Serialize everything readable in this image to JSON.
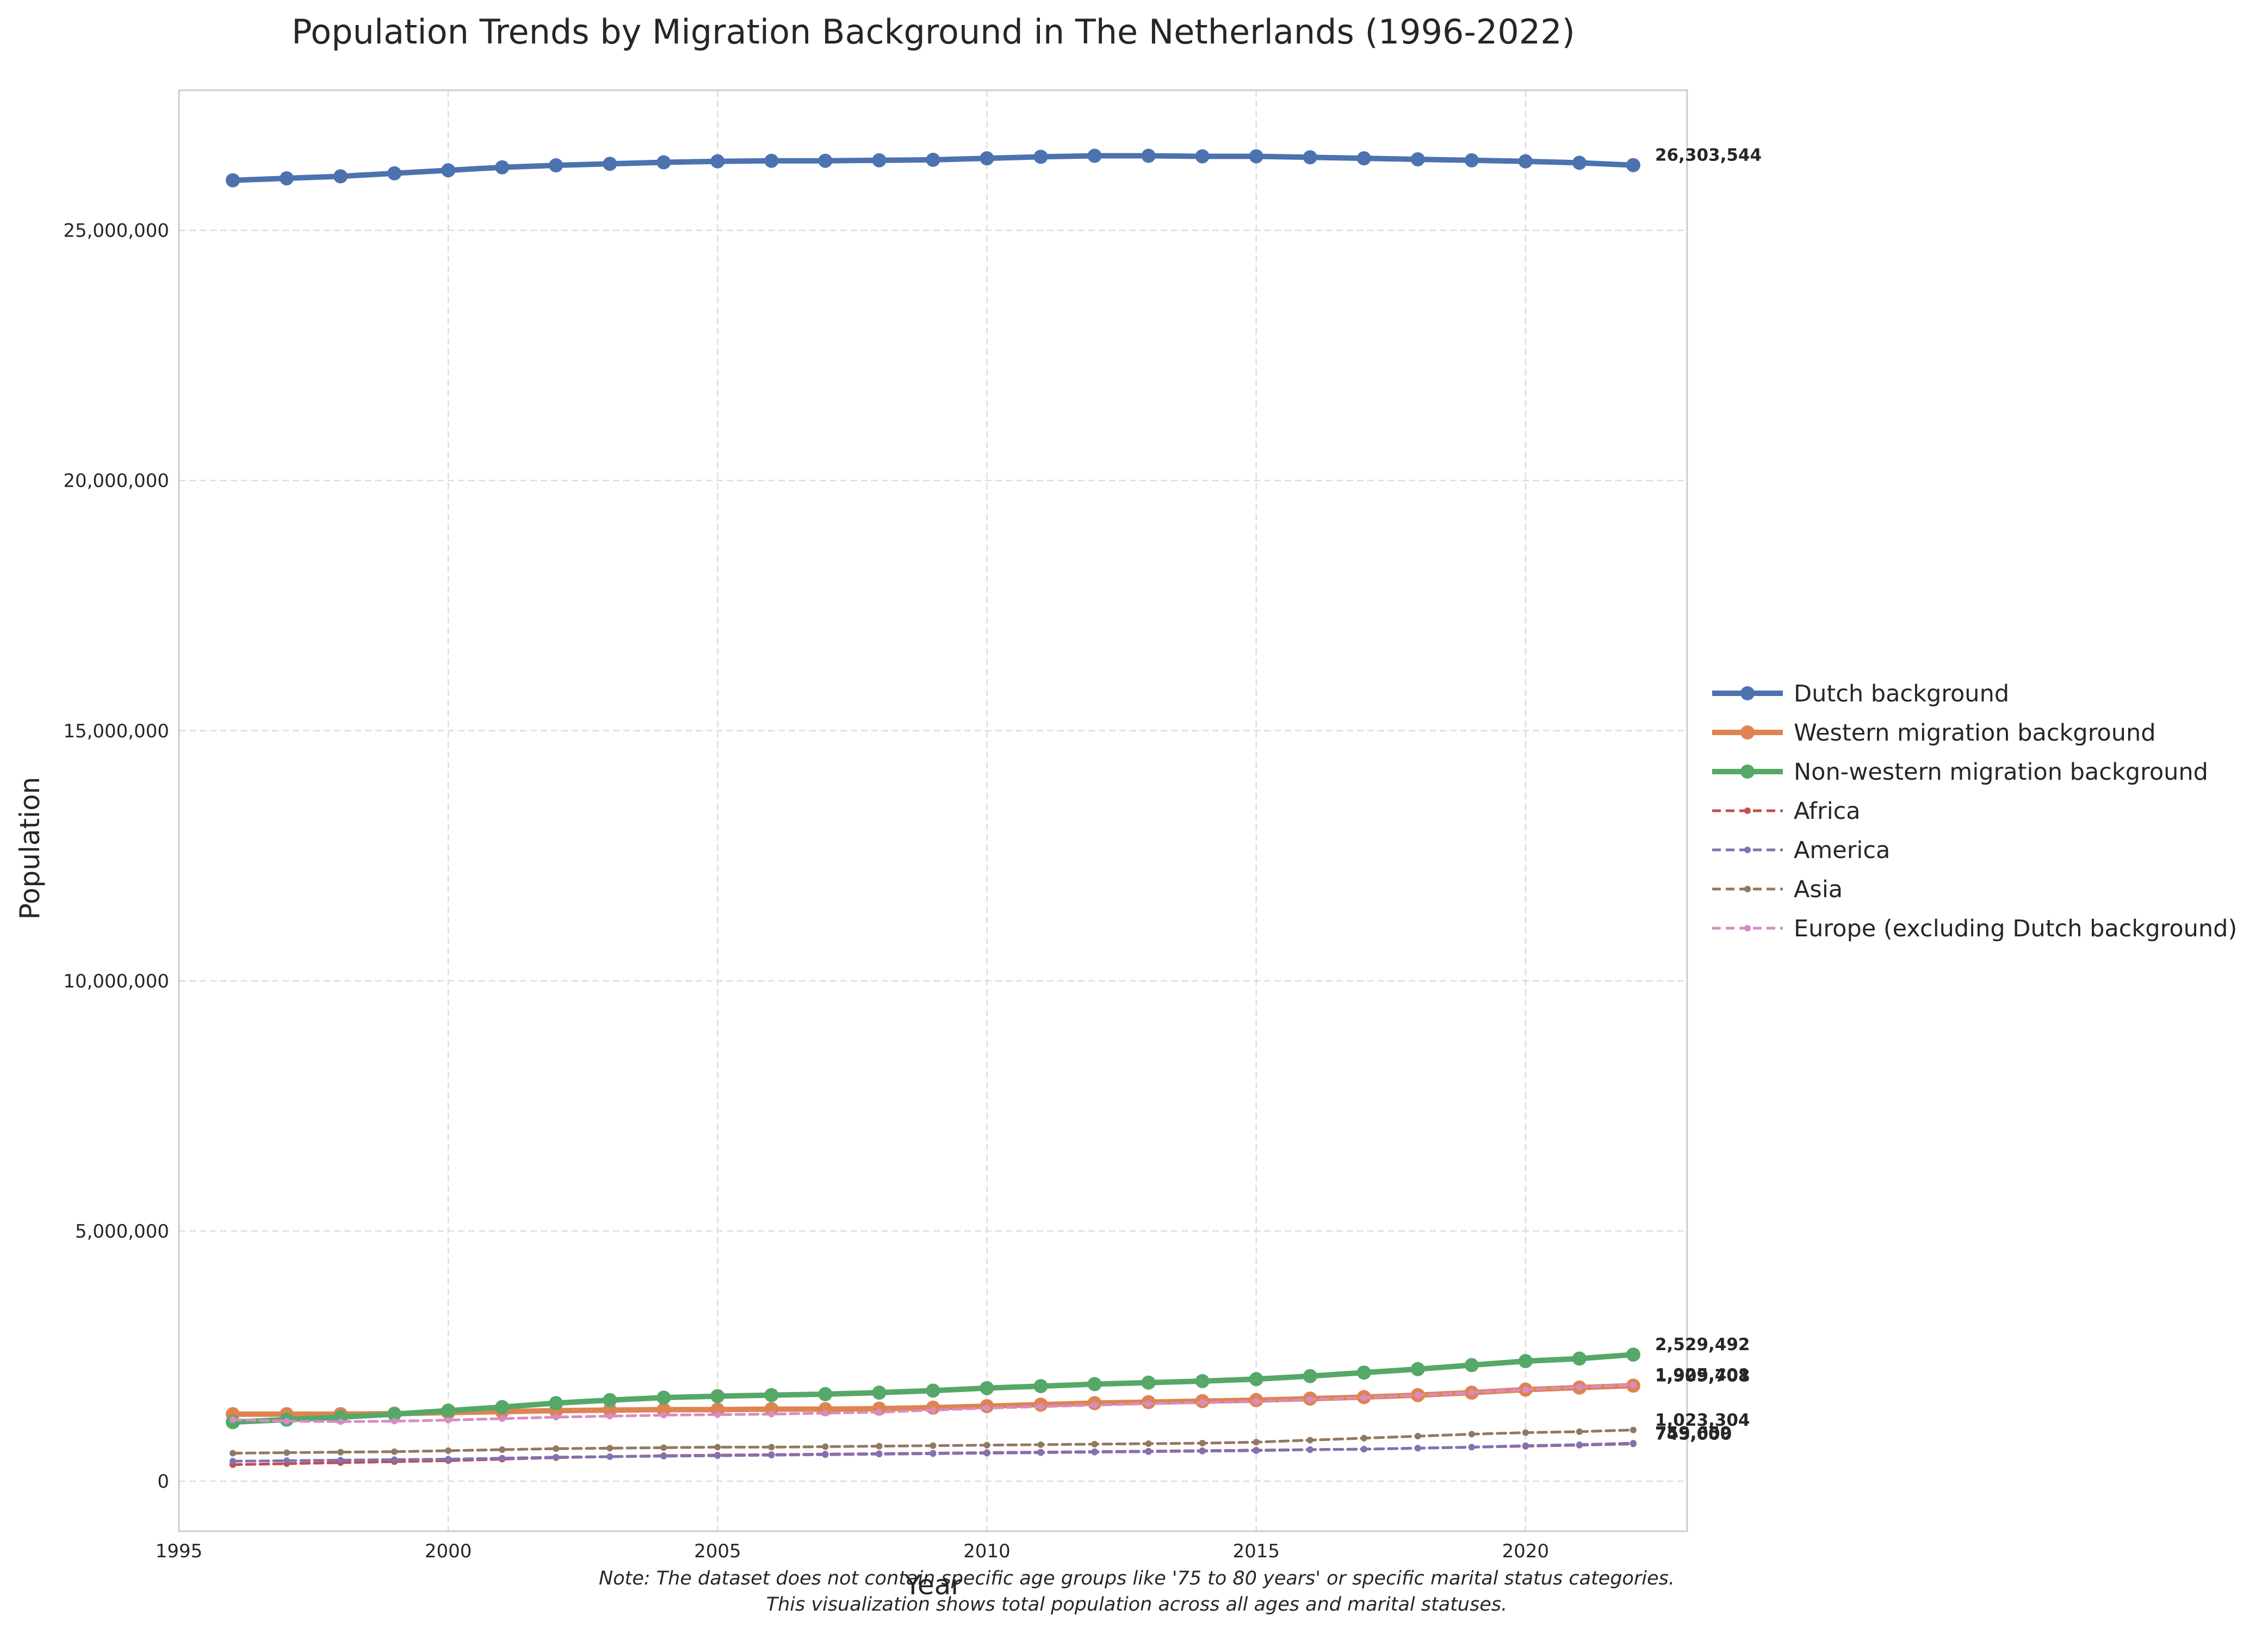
{
  "chart_data": {
    "type": "line",
    "title": "Population Trends by Migration Background in The Netherlands (1996-2022)",
    "xlabel": "Year",
    "ylabel": "Population",
    "xlim": [
      1995,
      2023
    ],
    "ylim": [
      -1000000,
      27800000
    ],
    "x_ticks": [
      1995,
      2000,
      2005,
      2010,
      2015,
      2020
    ],
    "y_ticks": [
      0,
      5000000,
      10000000,
      15000000,
      20000000,
      25000000
    ],
    "grid": true,
    "legend_position": "right",
    "x": [
      1996,
      1997,
      1998,
      1999,
      2000,
      2001,
      2002,
      2003,
      2004,
      2005,
      2006,
      2007,
      2008,
      2009,
      2010,
      2011,
      2012,
      2013,
      2014,
      2015,
      2016,
      2017,
      2018,
      2019,
      2020,
      2021,
      2022
    ],
    "series": [
      {
        "name": "Dutch background",
        "style": "solid-thick",
        "color": "#4c72b0",
        "values": [
          26000000,
          26040000,
          26080000,
          26140000,
          26200000,
          26260000,
          26300000,
          26330000,
          26360000,
          26380000,
          26390000,
          26390000,
          26400000,
          26410000,
          26440000,
          26470000,
          26490000,
          26490000,
          26480000,
          26480000,
          26460000,
          26440000,
          26420000,
          26400000,
          26380000,
          26350000,
          26303544
        ]
      },
      {
        "name": "Western migration background",
        "style": "solid-thick",
        "color": "#dd8452",
        "values": [
          1340000,
          1340000,
          1340000,
          1350000,
          1370000,
          1390000,
          1410000,
          1420000,
          1430000,
          1430000,
          1440000,
          1440000,
          1450000,
          1470000,
          1500000,
          1530000,
          1560000,
          1580000,
          1600000,
          1620000,
          1650000,
          1680000,
          1720000,
          1770000,
          1830000,
          1870000,
          1909708
        ]
      },
      {
        "name": "Non-western migration background",
        "style": "solid-thick",
        "color": "#55a868",
        "values": [
          1180000,
          1230000,
          1280000,
          1340000,
          1410000,
          1480000,
          1560000,
          1620000,
          1670000,
          1700000,
          1720000,
          1740000,
          1770000,
          1810000,
          1860000,
          1900000,
          1940000,
          1970000,
          2000000,
          2040000,
          2100000,
          2170000,
          2240000,
          2320000,
          2400000,
          2450000,
          2529492
        ]
      },
      {
        "name": "Africa",
        "style": "dashed",
        "color": "#c44e52",
        "values": [
          330000,
          350000,
          370000,
          390000,
          410000,
          440000,
          470000,
          490000,
          510000,
          520000,
          530000,
          540000,
          550000,
          560000,
          570000,
          580000,
          590000,
          600000,
          610000,
          620000,
          630000,
          640000,
          660000,
          680000,
          700000,
          720000,
          745000
        ]
      },
      {
        "name": "America",
        "style": "dashed",
        "color": "#8172b3",
        "values": [
          400000,
          410000,
          420000,
          430000,
          440000,
          460000,
          480000,
          490000,
          500000,
          510000,
          520000,
          530000,
          540000,
          550000,
          560000,
          570000,
          580000,
          590000,
          600000,
          610000,
          630000,
          640000,
          660000,
          680000,
          710000,
          730000,
          759659
        ]
      },
      {
        "name": "Asia",
        "style": "dashed",
        "color": "#937860",
        "values": [
          560000,
          570000,
          580000,
          590000,
          610000,
          630000,
          650000,
          660000,
          670000,
          680000,
          680000,
          690000,
          700000,
          710000,
          720000,
          730000,
          740000,
          750000,
          760000,
          780000,
          820000,
          860000,
          900000,
          940000,
          970000,
          990000,
          1023304
        ]
      },
      {
        "name": "Europe (excluding Dutch background)",
        "style": "dashed",
        "color": "#da8bc3",
        "values": [
          1230000,
          1200000,
          1190000,
          1200000,
          1220000,
          1250000,
          1280000,
          1300000,
          1320000,
          1330000,
          1340000,
          1360000,
          1380000,
          1420000,
          1460000,
          1490000,
          1520000,
          1550000,
          1570000,
          1590000,
          1630000,
          1670000,
          1720000,
          1770000,
          1830000,
          1880000,
          1925401
        ]
      }
    ],
    "end_labels": [
      {
        "series": "Dutch background",
        "text": "26,303,544",
        "value": 26303544
      },
      {
        "series": "Non-western migration background",
        "text": "2,529,492",
        "value": 2529492
      },
      {
        "series": "Europe (excluding Dutch background)",
        "text": "1,925,401",
        "value": 1925401
      },
      {
        "series": "Western migration background",
        "text": "1,909,708",
        "value": 1909708
      },
      {
        "series": "Asia",
        "text": "1,023,304",
        "value": 1023304
      },
      {
        "series": "America",
        "text": "759,659",
        "value": 759659
      },
      {
        "series": "Africa",
        "text": "745,000",
        "value": 745000
      }
    ],
    "note_lines": [
      "Note: The dataset does not contain specific age groups like '75 to 80 years' or specific marital status categories.",
      "This visualization shows total population across all ages and marital statuses."
    ]
  }
}
